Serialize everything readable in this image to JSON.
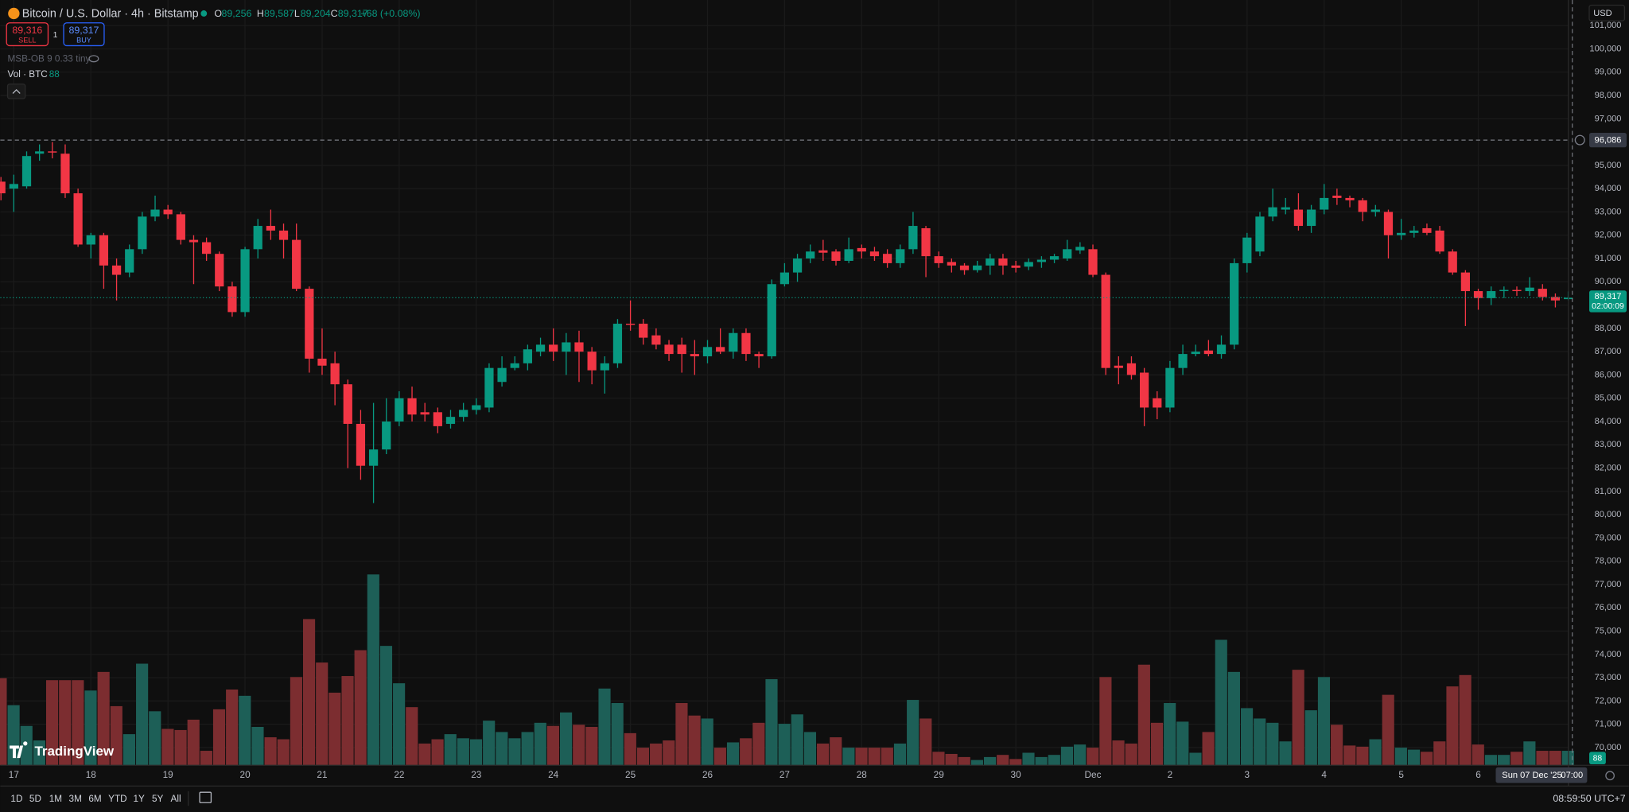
{
  "header": {
    "symbol": "Bitcoin / U.S. Dollar · 4h · Bitstamp",
    "ohlc": [
      {
        "key": "O",
        "value": "89,256"
      },
      {
        "key": "H",
        "value": "89,587"
      },
      {
        "key": "L",
        "value": "89,204"
      },
      {
        "key": "C",
        "value": "89,317"
      }
    ],
    "change": "+68 (+0.08%)",
    "sell_price": "89,316",
    "sell": "SELL",
    "spread": "1",
    "buy_price": "89,317",
    "buy": "BUY",
    "indicator": "MSB-OB 9 0.33 tiny",
    "volume_label": "Vol · BTC"
  },
  "currency": "USD",
  "logo": "TradingView",
  "toolbar": {
    "ranges": [
      "1D",
      "5D",
      "1M",
      "3M",
      "6M",
      "YTD",
      "1Y",
      "5Y",
      "All"
    ],
    "clock": "08:59:50 UTC+7"
  },
  "chart_data": {
    "type": "candlestick",
    "up_color": "#089981",
    "down_color": "#f23645",
    "volume_up_color": "#1d5f57",
    "volume_down_color": "#7c2d30",
    "grid": true,
    "categories": [
      null,
      "17",
      null,
      null,
      null,
      null,
      null,
      "18",
      null,
      null,
      null,
      null,
      null,
      "19",
      null,
      null,
      null,
      null,
      null,
      "20",
      null,
      null,
      null,
      null,
      null,
      "21",
      null,
      null,
      null,
      null,
      null,
      "22",
      null,
      null,
      null,
      null,
      null,
      "23",
      null,
      null,
      null,
      null,
      null,
      "24",
      null,
      null,
      null,
      null,
      null,
      "25",
      null,
      null,
      null,
      null,
      null,
      "26",
      null,
      null,
      null,
      null,
      null,
      "27",
      null,
      null,
      null,
      null,
      null,
      "28",
      null,
      null,
      null,
      null,
      null,
      "29",
      null,
      null,
      null,
      null,
      null,
      "30",
      null,
      null,
      null,
      null,
      null,
      "Dec",
      null,
      null,
      null,
      null,
      null,
      "2",
      null,
      null,
      null,
      null,
      null,
      "3",
      null,
      null,
      null,
      null,
      null,
      "4",
      null,
      null,
      null,
      null,
      null,
      "5",
      null,
      null,
      null,
      null,
      null,
      "6",
      null,
      null,
      null,
      null,
      null,
      null,
      null
    ],
    "open": [
      94300,
      94000,
      94100,
      95500,
      95600,
      95500,
      93800,
      91600,
      92000,
      90700,
      90400,
      91400,
      92800,
      93100,
      92900,
      91800,
      91700,
      91200,
      89800,
      88700,
      91400,
      92400,
      92200,
      91800,
      89700,
      86700,
      86500,
      85600,
      83900,
      82100,
      82800,
      84000,
      85000,
      84400,
      84400,
      83900,
      84200,
      84500,
      84600,
      85700,
      86300,
      86500,
      87000,
      87300,
      87000,
      87400,
      87000,
      86200,
      86500,
      88200,
      88200,
      87700,
      87300,
      87300,
      86900,
      86800,
      87200,
      87000,
      87800,
      86900,
      86800,
      89900,
      90400,
      91000,
      91350,
      91300,
      90900,
      91450,
      91300,
      91200,
      90800,
      91400,
      92300,
      91100,
      90850,
      90700,
      90500,
      90700,
      91000,
      90700,
      90650,
      90850,
      90950,
      91000,
      91350,
      91400,
      90300,
      86400,
      86500,
      86100,
      85000,
      84600,
      86300,
      86900,
      87050,
      86900,
      87300,
      90800,
      91300,
      92800,
      93100,
      93100,
      92400,
      93100,
      93700,
      93600,
      93500,
      93000,
      93000,
      92000,
      92100,
      92300,
      92200,
      91300,
      90400,
      89600,
      89300,
      89600,
      89650,
      89600,
      89700,
      89350,
      89256
    ],
    "high": [
      94500,
      94600,
      95600,
      95900,
      96000,
      95900,
      94000,
      92100,
      92100,
      91000,
      91600,
      93000,
      93700,
      93300,
      93000,
      92000,
      91900,
      91300,
      90000,
      91500,
      92700,
      93100,
      92500,
      92500,
      89800,
      88000,
      87000,
      85800,
      84500,
      84800,
      85000,
      85300,
      85500,
      84800,
      84600,
      84500,
      84800,
      85000,
      86500,
      86800,
      86800,
      87300,
      87600,
      88000,
      87800,
      87900,
      87200,
      86800,
      88400,
      89200,
      88400,
      88000,
      87500,
      87600,
      87500,
      87500,
      88000,
      88000,
      88000,
      87000,
      90100,
      90800,
      91200,
      91600,
      91800,
      91400,
      91900,
      91600,
      91500,
      91400,
      91600,
      93000,
      92400,
      91300,
      91000,
      90800,
      90900,
      91200,
      91200,
      90900,
      91000,
      91100,
      91200,
      91800,
      91700,
      91600,
      90400,
      86800,
      86800,
      86300,
      85300,
      86600,
      87300,
      87300,
      87500,
      87700,
      91000,
      92100,
      93000,
      94000,
      93600,
      93800,
      93300,
      94200,
      94000,
      93700,
      93600,
      93300,
      93100,
      92700,
      92400,
      92500,
      92400,
      91400,
      90500,
      89700,
      89800,
      89800,
      89800,
      90200,
      89900,
      89500,
      89587
    ],
    "low": [
      93500,
      93000,
      94000,
      95200,
      95300,
      93600,
      91500,
      91000,
      89700,
      89200,
      90200,
      91200,
      92600,
      92700,
      91600,
      89900,
      90900,
      89600,
      88500,
      88500,
      91000,
      91800,
      91000,
      89600,
      86100,
      86000,
      84700,
      82000,
      81500,
      80500,
      82600,
      83800,
      84000,
      84000,
      83500,
      83700,
      84000,
      84300,
      84400,
      85500,
      86200,
      86200,
      86800,
      86600,
      86000,
      85700,
      85600,
      85200,
      86300,
      87900,
      87300,
      87100,
      86600,
      86100,
      86000,
      86500,
      86900,
      86700,
      86600,
      86300,
      86700,
      89800,
      90000,
      90800,
      90900,
      90700,
      90800,
      91000,
      90900,
      90600,
      90600,
      91200,
      90200,
      90600,
      90400,
      90300,
      90400,
      90300,
      90300,
      90400,
      90500,
      90600,
      90800,
      90900,
      91200,
      90200,
      86000,
      85600,
      85800,
      83800,
      84100,
      84400,
      86000,
      86800,
      86800,
      86700,
      87100,
      90400,
      91100,
      92600,
      92900,
      92200,
      92100,
      92900,
      93300,
      93200,
      92600,
      92800,
      91000,
      91800,
      91900,
      92000,
      91200,
      90300,
      88100,
      88800,
      89000,
      89300,
      89400,
      89400,
      89200,
      88900,
      89204
    ],
    "close": [
      93800,
      94200,
      95400,
      95600,
      95550,
      93800,
      91600,
      92000,
      90700,
      90300,
      91400,
      92800,
      93100,
      92900,
      91800,
      91700,
      91200,
      89800,
      88700,
      91400,
      92400,
      92200,
      91800,
      89700,
      86700,
      86400,
      85600,
      83900,
      82100,
      82800,
      84000,
      85000,
      84300,
      84300,
      83800,
      84200,
      84500,
      84700,
      86300,
      86300,
      86500,
      87100,
      87300,
      87000,
      87400,
      87000,
      86200,
      86500,
      88200,
      88150,
      87600,
      87300,
      86900,
      86900,
      86800,
      87200,
      87000,
      87800,
      86900,
      86800,
      89900,
      90400,
      91000,
      91300,
      91250,
      90900,
      91400,
      91300,
      91100,
      90800,
      91400,
      92400,
      91100,
      90800,
      90700,
      90500,
      90700,
      91000,
      90700,
      90600,
      90850,
      90950,
      91100,
      91400,
      91500,
      90300,
      86300,
      86300,
      86000,
      84600,
      84600,
      86300,
      86900,
      87000,
      86900,
      87300,
      90800,
      91900,
      92800,
      93200,
      93200,
      92400,
      93100,
      93600,
      93600,
      93500,
      93000,
      93100,
      92000,
      92100,
      92200,
      92100,
      91300,
      90400,
      89600,
      89300,
      89600,
      89650,
      89600,
      89750,
      89350,
      89200,
      89317
    ],
    "volume": [
      529,
      365,
      239,
      151,
      517,
      517,
      517,
      454,
      567,
      359,
      189,
      617,
      328,
      221,
      214,
      277,
      88,
      340,
      460,
      422,
      233,
      170,
      158,
      536,
      888,
      624,
      441,
      542,
      699,
      1159,
      725,
      498,
      353,
      132,
      158,
      189,
      164,
      158,
      271,
      202,
      164,
      202,
      258,
      239,
      321,
      246,
      233,
      466,
      378,
      195,
      107,
      132,
      151,
      378,
      302,
      284,
      107,
      139,
      164,
      258,
      523,
      252,
      309,
      202,
      132,
      170,
      107,
      107,
      107,
      107,
      132,
      397,
      284,
      82,
      69,
      50,
      32,
      50,
      63,
      38,
      76,
      50,
      63,
      113,
      126,
      107,
      536,
      151,
      132,
      611,
      258,
      378,
      265,
      76,
      202,
      762,
      567,
      347,
      284,
      258,
      145,
      580,
      334,
      536,
      246,
      120,
      113,
      158,
      428,
      107,
      95,
      82,
      145,
      479,
      548,
      126,
      63,
      63,
      82,
      145,
      88,
      88,
      88
    ],
    "ylim": [
      69240,
      102100
    ],
    "vlim": [
      0,
      1400
    ],
    "yticks": [
      {
        "value": 70000,
        "label": "70,000"
      },
      {
        "value": 71000,
        "label": "71,000"
      },
      {
        "value": 72000,
        "label": "72,000"
      },
      {
        "value": 73000,
        "label": "73,000"
      },
      {
        "value": 74000,
        "label": "74,000"
      },
      {
        "value": 75000,
        "label": "75,000"
      },
      {
        "value": 76000,
        "label": "76,000"
      },
      {
        "value": 77000,
        "label": "77,000"
      },
      {
        "value": 78000,
        "label": "78,000"
      },
      {
        "value": 79000,
        "label": "79,000"
      },
      {
        "value": 80000,
        "label": "80,000"
      },
      {
        "value": 81000,
        "label": "81,000"
      },
      {
        "value": 82000,
        "label": "82,000"
      },
      {
        "value": 83000,
        "label": "83,000"
      },
      {
        "value": 84000,
        "label": "84,000"
      },
      {
        "value": 85000,
        "label": "85,000"
      },
      {
        "value": 86000,
        "label": "86,000"
      },
      {
        "value": 87000,
        "label": "87,000"
      },
      {
        "value": 88000,
        "label": "88,000"
      },
      {
        "value": 89000,
        "label": "89,000"
      },
      {
        "value": 90000,
        "label": "90,000"
      },
      {
        "value": 91000,
        "label": "91,000"
      },
      {
        "value": 92000,
        "label": "92,000"
      },
      {
        "value": 93000,
        "label": "93,000"
      },
      {
        "value": 94000,
        "label": "94,000"
      },
      {
        "value": 95000,
        "label": "95,000"
      },
      {
        "value": 97000,
        "label": "97,000"
      },
      {
        "value": 98000,
        "label": "98,000"
      },
      {
        "value": 99000,
        "label": "99,000"
      },
      {
        "value": 100000,
        "label": "100,000"
      },
      {
        "value": 101000,
        "label": "101,000"
      }
    ],
    "last_price_label": "89,317",
    "countdown": "02:00:09",
    "crosshair": {
      "price": 96086,
      "price_label": "96,086",
      "date_label": "Sun 07 Dec '25",
      "time_label": "07:00"
    }
  }
}
